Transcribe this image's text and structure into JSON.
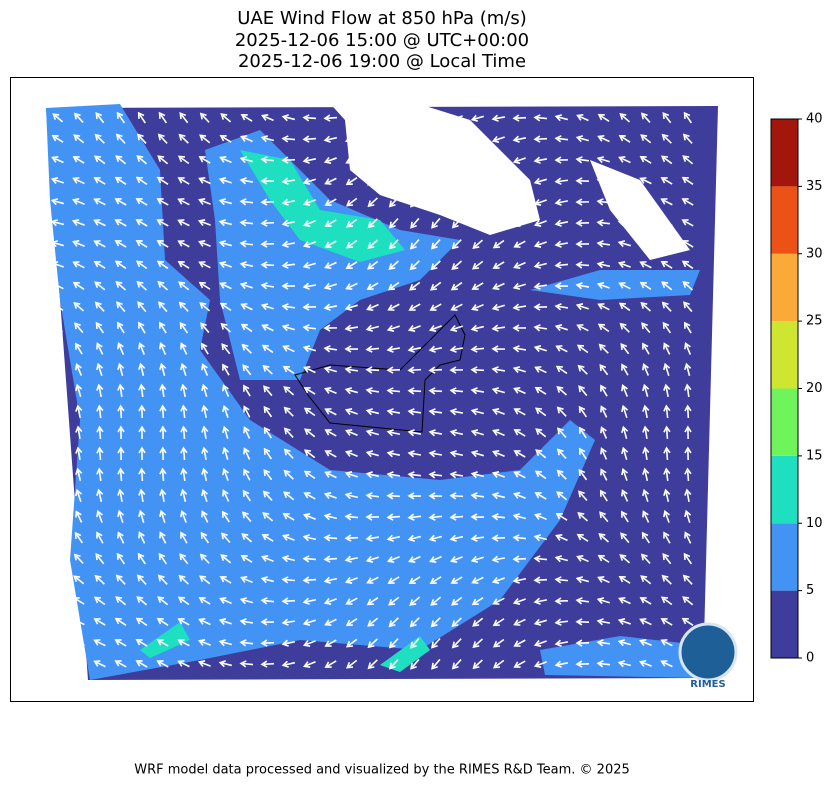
{
  "title": [
    "UAE Wind Flow at 850 hPa (m/s)",
    "2025-12-06 15:00 @ UTC+00:00",
    "2025-12-06 19:00 @ Local Time"
  ],
  "colorbar": {
    "levels": [
      0,
      5,
      10,
      15,
      20,
      25,
      30,
      35,
      40
    ],
    "ylim": [
      0,
      40
    ],
    "colors": [
      "#3e3d9c",
      "#4393f5",
      "#1edfc0",
      "#6ff55b",
      "#cfe631",
      "#fbaa3a",
      "#ec5216",
      "#a3160b"
    ]
  },
  "logo": "RIMES",
  "footer": "WRF model data processed and visualized by the RIMES R&D Team. © 2025"
}
